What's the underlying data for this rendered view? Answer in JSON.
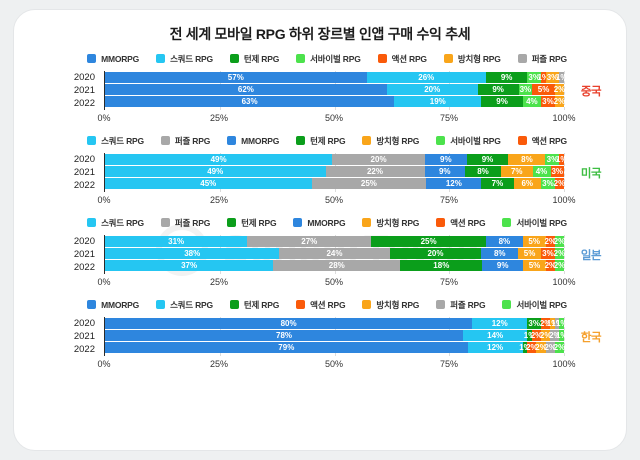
{
  "title": "전 세계 모바일 RPG 하위 장르별 인앱 구매 수익 추세",
  "watermark": {
    "text": "SensorTower"
  },
  "genre_colors": {
    "MMORPG": "#2e86de",
    "스쿼드 RPG": "#25c6f2",
    "턴제 RPG": "#0b9e1b",
    "서바이벌 RPG": "#4ce24c",
    "액션 RPG": "#fa5a0a",
    "방치형 RPG": "#f9a51a",
    "퍼즐 RPG": "#a8a8a8"
  },
  "chart_data": [
    {
      "type": "bar",
      "orientation": "horizontal-stacked",
      "country": "중국",
      "country_color": "#e8402c",
      "legend": [
        "MMORPG",
        "스쿼드 RPG",
        "턴제 RPG",
        "서바이벌 RPG",
        "액션 RPG",
        "방치형 RPG",
        "퍼즐 RPG"
      ],
      "years": [
        "2020",
        "2021",
        "2022"
      ],
      "rows": [
        [
          57,
          26,
          9,
          3,
          1,
          3,
          1
        ],
        [
          62,
          20,
          9,
          3,
          5,
          2,
          0
        ],
        [
          63,
          19,
          9,
          4,
          3,
          2,
          0
        ]
      ],
      "x_ticks": [
        "0%",
        "25%",
        "50%",
        "75%",
        "100%"
      ],
      "x_tick_positions": [
        0,
        25,
        50,
        75,
        100
      ],
      "xlim": [
        0,
        100
      ]
    },
    {
      "type": "bar",
      "orientation": "horizontal-stacked",
      "country": "미국",
      "country_color": "#3dbd42",
      "legend": [
        "스쿼드 RPG",
        "퍼즐 RPG",
        "MMORPG",
        "턴제 RPG",
        "방치형 RPG",
        "서바이벌 RPG",
        "액션 RPG"
      ],
      "years": [
        "2020",
        "2021",
        "2022"
      ],
      "rows": [
        [
          49,
          20,
          9,
          9,
          8,
          3,
          1
        ],
        [
          49,
          22,
          9,
          8,
          7,
          4,
          3
        ],
        [
          45,
          25,
          12,
          7,
          6,
          3,
          2
        ]
      ],
      "x_ticks": [
        "0%",
        "25%",
        "50%",
        "75%",
        "100%"
      ],
      "x_tick_positions": [
        0,
        25,
        50,
        75,
        100
      ],
      "xlim": [
        0,
        100
      ]
    },
    {
      "type": "bar",
      "orientation": "horizontal-stacked",
      "country": "일본",
      "country_color": "#5b9bd5",
      "legend": [
        "스쿼드 RPG",
        "퍼즐 RPG",
        "턴제 RPG",
        "MMORPG",
        "방치형 RPG",
        "액션 RPG",
        "서바이벌 RPG"
      ],
      "years": [
        "2020",
        "2021",
        "2022"
      ],
      "rows": [
        [
          31,
          27,
          25,
          8,
          5,
          2,
          2
        ],
        [
          38,
          24,
          20,
          8,
          5,
          3,
          2
        ],
        [
          37,
          28,
          18,
          9,
          5,
          2,
          2
        ]
      ],
      "x_ticks": [
        "0%",
        "25%",
        "50%",
        "75%",
        "100%"
      ],
      "x_tick_positions": [
        0,
        25,
        50,
        75,
        100
      ],
      "xlim": [
        0,
        100
      ]
    },
    {
      "type": "bar",
      "orientation": "horizontal-stacked",
      "country": "한국",
      "country_color": "#f5a02d",
      "legend": [
        "MMORPG",
        "스쿼드 RPG",
        "턴제 RPG",
        "액션 RPG",
        "방치형 RPG",
        "퍼즐 RPG",
        "서바이벌 RPG"
      ],
      "years": [
        "2020",
        "2021",
        "2022"
      ],
      "rows": [
        [
          80,
          12,
          3,
          2,
          1,
          1,
          1
        ],
        [
          78,
          14,
          1,
          2,
          2,
          2,
          1
        ],
        [
          79,
          12,
          1,
          2,
          2,
          2,
          2
        ]
      ],
      "x_ticks": [
        "0%",
        "25%",
        "50%",
        "75%",
        "100%"
      ],
      "x_tick_positions": [
        0,
        25,
        50,
        75,
        100
      ],
      "xlim": [
        0,
        100
      ]
    }
  ]
}
